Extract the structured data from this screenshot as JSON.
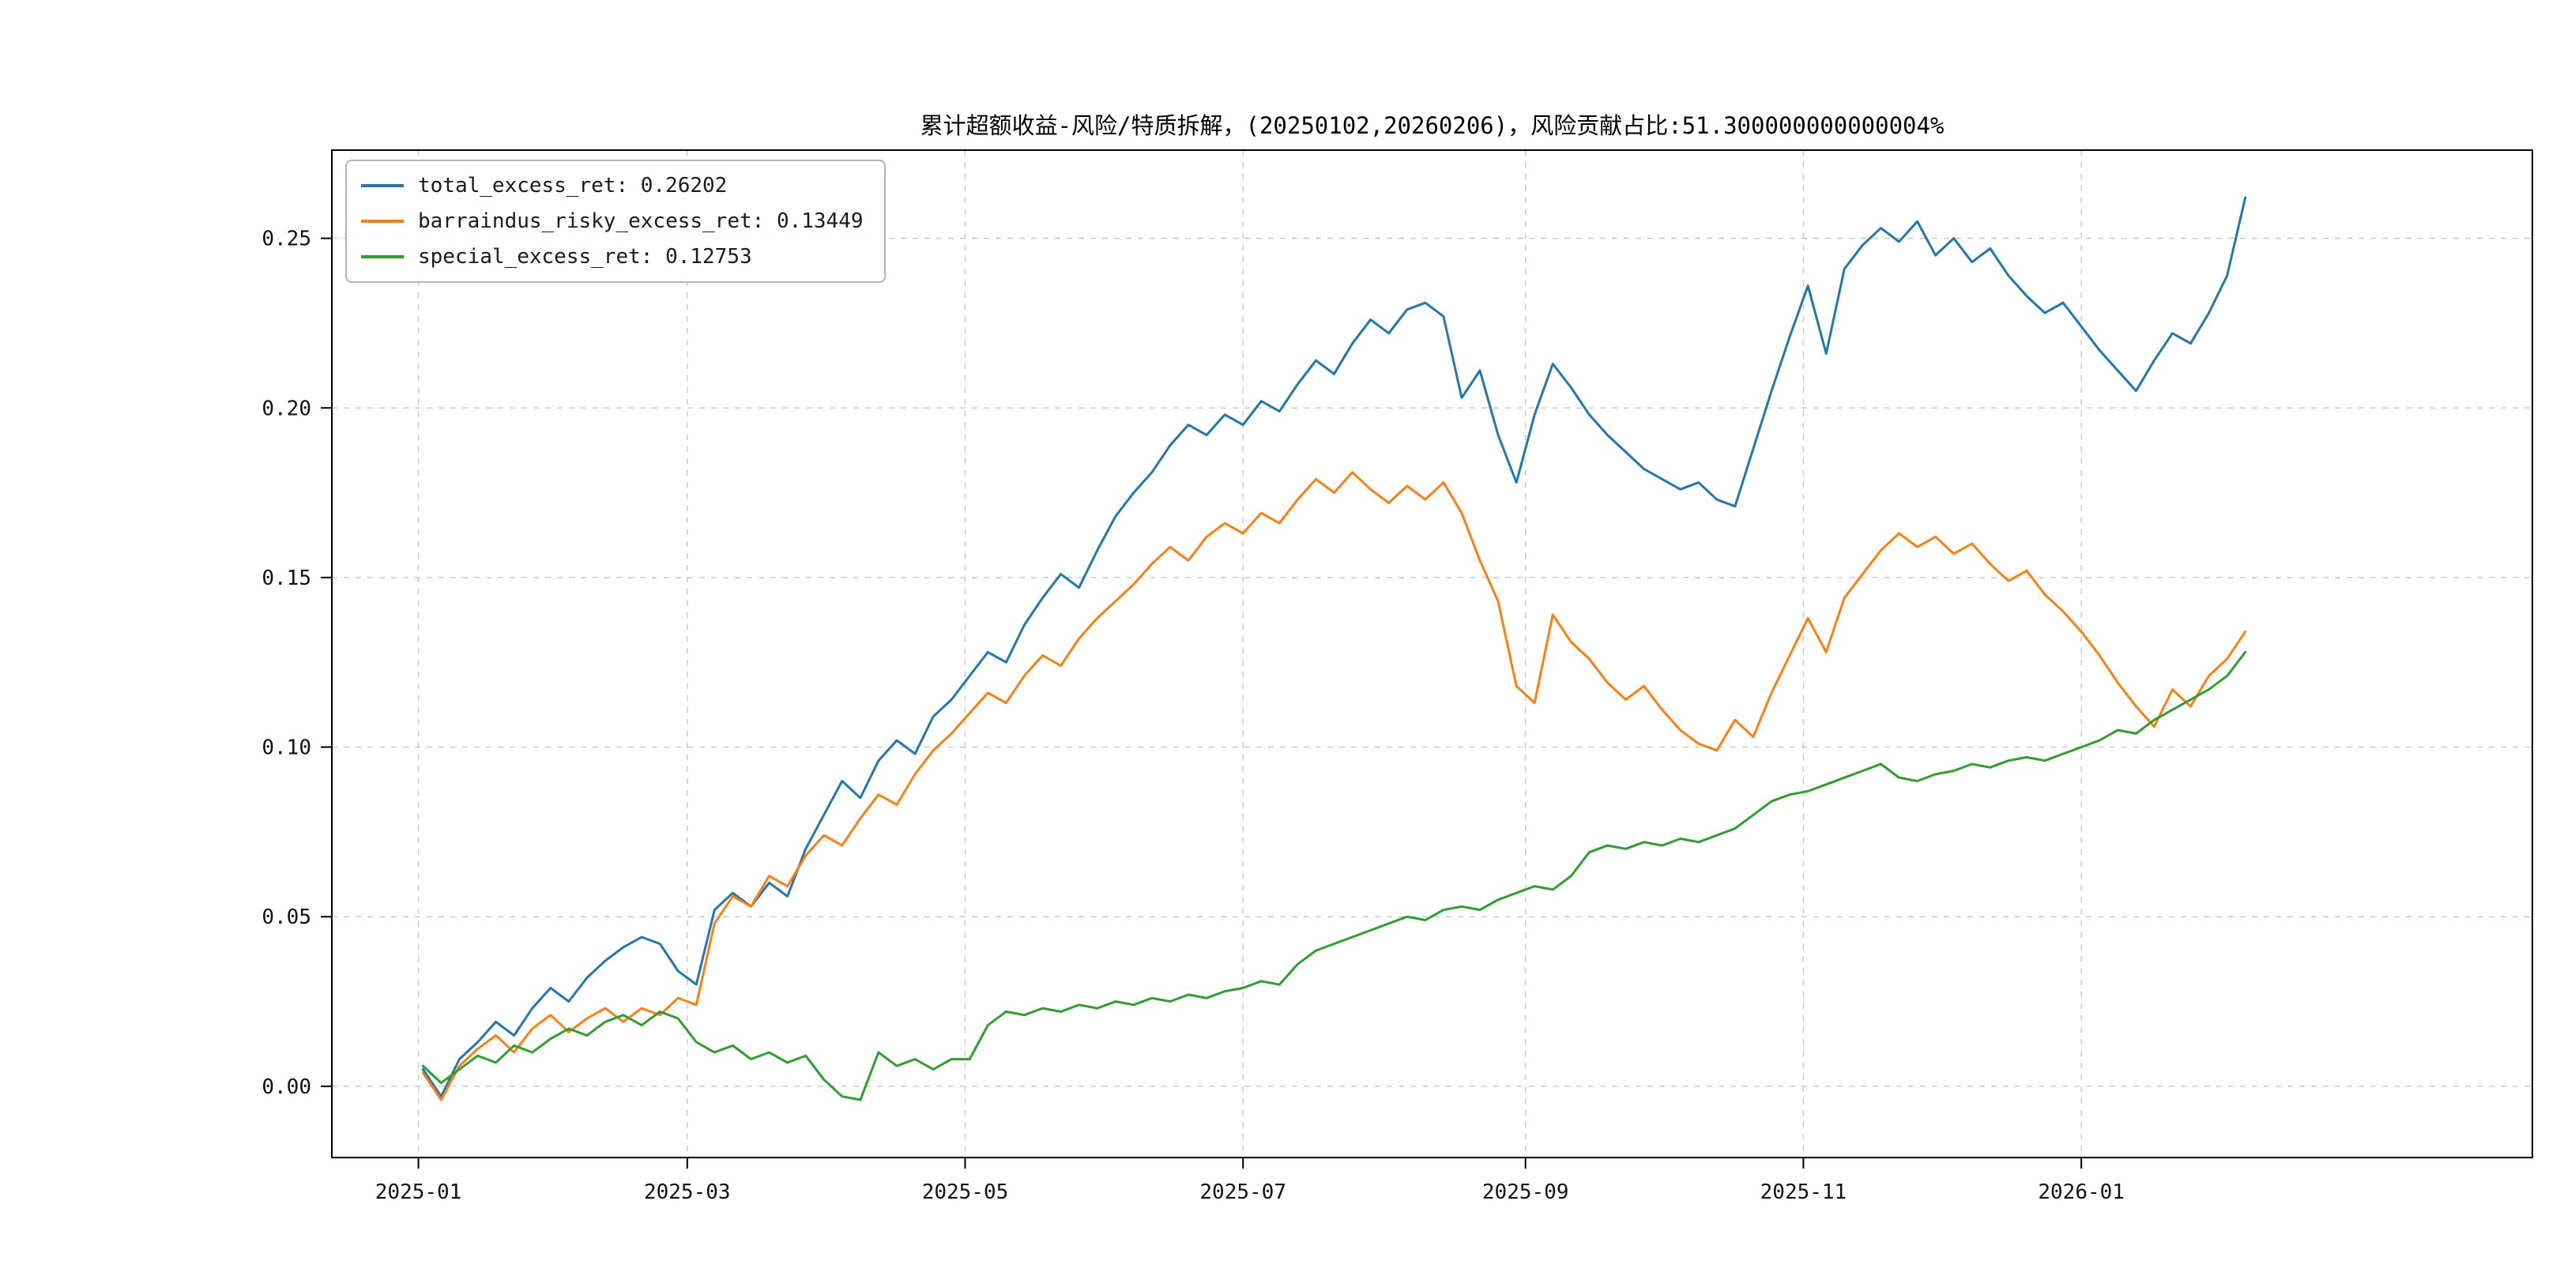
{
  "title": "累计超额收益-风险/特质拆解，(20250102,20260206)，风险贡献占比:51.300000000000004%",
  "colors": {
    "background": "#ffffff",
    "axis": "#000000",
    "grid": "#c8c8c8"
  },
  "chart_data": {
    "type": "line",
    "title": "累计超额收益-风险/特质拆解，(20250102,20260206)，风险贡献占比:51.300000000000004%",
    "xlabel": "",
    "ylabel": "",
    "x_unit": "days since 2025-01-02",
    "x_start": 0,
    "x_step": 4,
    "x_count": 101,
    "xlim": [
      -20,
      463
    ],
    "ylim": [
      -0.021,
      0.276
    ],
    "grid": "dashed",
    "legend_position": "upper-left",
    "x_ticks": [
      {
        "day": -1,
        "label": "2025-01"
      },
      {
        "day": 58,
        "label": "2025-03"
      },
      {
        "day": 119,
        "label": "2025-05"
      },
      {
        "day": 180,
        "label": "2025-07"
      },
      {
        "day": 242,
        "label": "2025-09"
      },
      {
        "day": 303,
        "label": "2025-11"
      },
      {
        "day": 364,
        "label": "2026-01"
      }
    ],
    "y_ticks": [
      {
        "value": 0.0,
        "label": "0.00"
      },
      {
        "value": 0.05,
        "label": "0.05"
      },
      {
        "value": 0.1,
        "label": "0.10"
      },
      {
        "value": 0.15,
        "label": "0.15"
      },
      {
        "value": 0.2,
        "label": "0.20"
      },
      {
        "value": 0.25,
        "label": "0.25"
      }
    ],
    "series": [
      {
        "name": "total_excess_ret",
        "final_value": 0.26202,
        "label": "total_excess_ret: 0.26202",
        "color": "#1f77b4",
        "values": [
          0.005,
          -0.003,
          0.008,
          0.013,
          0.019,
          0.015,
          0.023,
          0.029,
          0.025,
          0.032,
          0.037,
          0.041,
          0.044,
          0.042,
          0.034,
          0.03,
          0.052,
          0.057,
          0.053,
          0.06,
          0.056,
          0.07,
          0.08,
          0.09,
          0.085,
          0.096,
          0.102,
          0.098,
          0.109,
          0.114,
          0.121,
          0.128,
          0.125,
          0.136,
          0.144,
          0.151,
          0.147,
          0.158,
          0.168,
          0.175,
          0.181,
          0.189,
          0.195,
          0.192,
          0.198,
          0.195,
          0.202,
          0.199,
          0.207,
          0.214,
          0.21,
          0.219,
          0.226,
          0.222,
          0.229,
          0.231,
          0.227,
          0.203,
          0.211,
          0.192,
          0.178,
          0.198,
          0.213,
          0.206,
          0.198,
          0.192,
          0.187,
          0.182,
          0.179,
          0.176,
          0.178,
          0.173,
          0.171,
          0.188,
          0.205,
          0.221,
          0.236,
          0.216,
          0.241,
          0.248,
          0.253,
          0.249,
          0.255,
          0.245,
          0.25,
          0.243,
          0.247,
          0.239,
          0.233,
          0.228,
          0.231,
          0.224,
          0.217,
          0.211,
          0.205,
          0.214,
          0.222,
          0.219,
          0.228,
          0.239,
          0.262
        ]
      },
      {
        "name": "barraindus_risky_excess_ret",
        "final_value": 0.13449,
        "label": "barraindus_risky_excess_ret: 0.13449",
        "color": "#ff7f0e",
        "values": [
          0.004,
          -0.004,
          0.006,
          0.011,
          0.015,
          0.01,
          0.017,
          0.021,
          0.016,
          0.02,
          0.023,
          0.019,
          0.023,
          0.021,
          0.026,
          0.024,
          0.048,
          0.056,
          0.053,
          0.062,
          0.059,
          0.068,
          0.074,
          0.071,
          0.079,
          0.086,
          0.083,
          0.092,
          0.099,
          0.104,
          0.11,
          0.116,
          0.113,
          0.121,
          0.127,
          0.124,
          0.132,
          0.138,
          0.143,
          0.148,
          0.154,
          0.159,
          0.155,
          0.162,
          0.166,
          0.163,
          0.169,
          0.166,
          0.173,
          0.179,
          0.175,
          0.181,
          0.176,
          0.172,
          0.177,
          0.173,
          0.178,
          0.169,
          0.155,
          0.143,
          0.118,
          0.113,
          0.139,
          0.131,
          0.126,
          0.119,
          0.114,
          0.118,
          0.111,
          0.105,
          0.101,
          0.099,
          0.108,
          0.103,
          0.116,
          0.127,
          0.138,
          0.128,
          0.144,
          0.151,
          0.158,
          0.163,
          0.159,
          0.162,
          0.157,
          0.16,
          0.154,
          0.149,
          0.152,
          0.145,
          0.14,
          0.134,
          0.127,
          0.119,
          0.112,
          0.106,
          0.117,
          0.112,
          0.121,
          0.126,
          0.134
        ]
      },
      {
        "name": "special_excess_ret",
        "final_value": 0.12753,
        "label": "special_excess_ret: 0.12753",
        "color": "#2ca02c",
        "values": [
          0.006,
          0.001,
          0.005,
          0.009,
          0.007,
          0.012,
          0.01,
          0.014,
          0.017,
          0.015,
          0.019,
          0.021,
          0.018,
          0.022,
          0.02,
          0.013,
          0.01,
          0.012,
          0.008,
          0.01,
          0.007,
          0.009,
          0.002,
          -0.003,
          -0.004,
          0.01,
          0.006,
          0.008,
          0.005,
          0.008,
          0.008,
          0.018,
          0.022,
          0.021,
          0.023,
          0.022,
          0.024,
          0.023,
          0.025,
          0.024,
          0.026,
          0.025,
          0.027,
          0.026,
          0.028,
          0.029,
          0.031,
          0.03,
          0.036,
          0.04,
          0.042,
          0.044,
          0.046,
          0.048,
          0.05,
          0.049,
          0.052,
          0.053,
          0.052,
          0.055,
          0.057,
          0.059,
          0.058,
          0.062,
          0.069,
          0.071,
          0.07,
          0.072,
          0.071,
          0.073,
          0.072,
          0.074,
          0.076,
          0.08,
          0.084,
          0.086,
          0.087,
          0.089,
          0.091,
          0.093,
          0.095,
          0.091,
          0.09,
          0.092,
          0.093,
          0.095,
          0.094,
          0.096,
          0.097,
          0.096,
          0.098,
          0.1,
          0.102,
          0.105,
          0.104,
          0.108,
          0.111,
          0.114,
          0.117,
          0.121,
          0.128
        ]
      }
    ]
  }
}
